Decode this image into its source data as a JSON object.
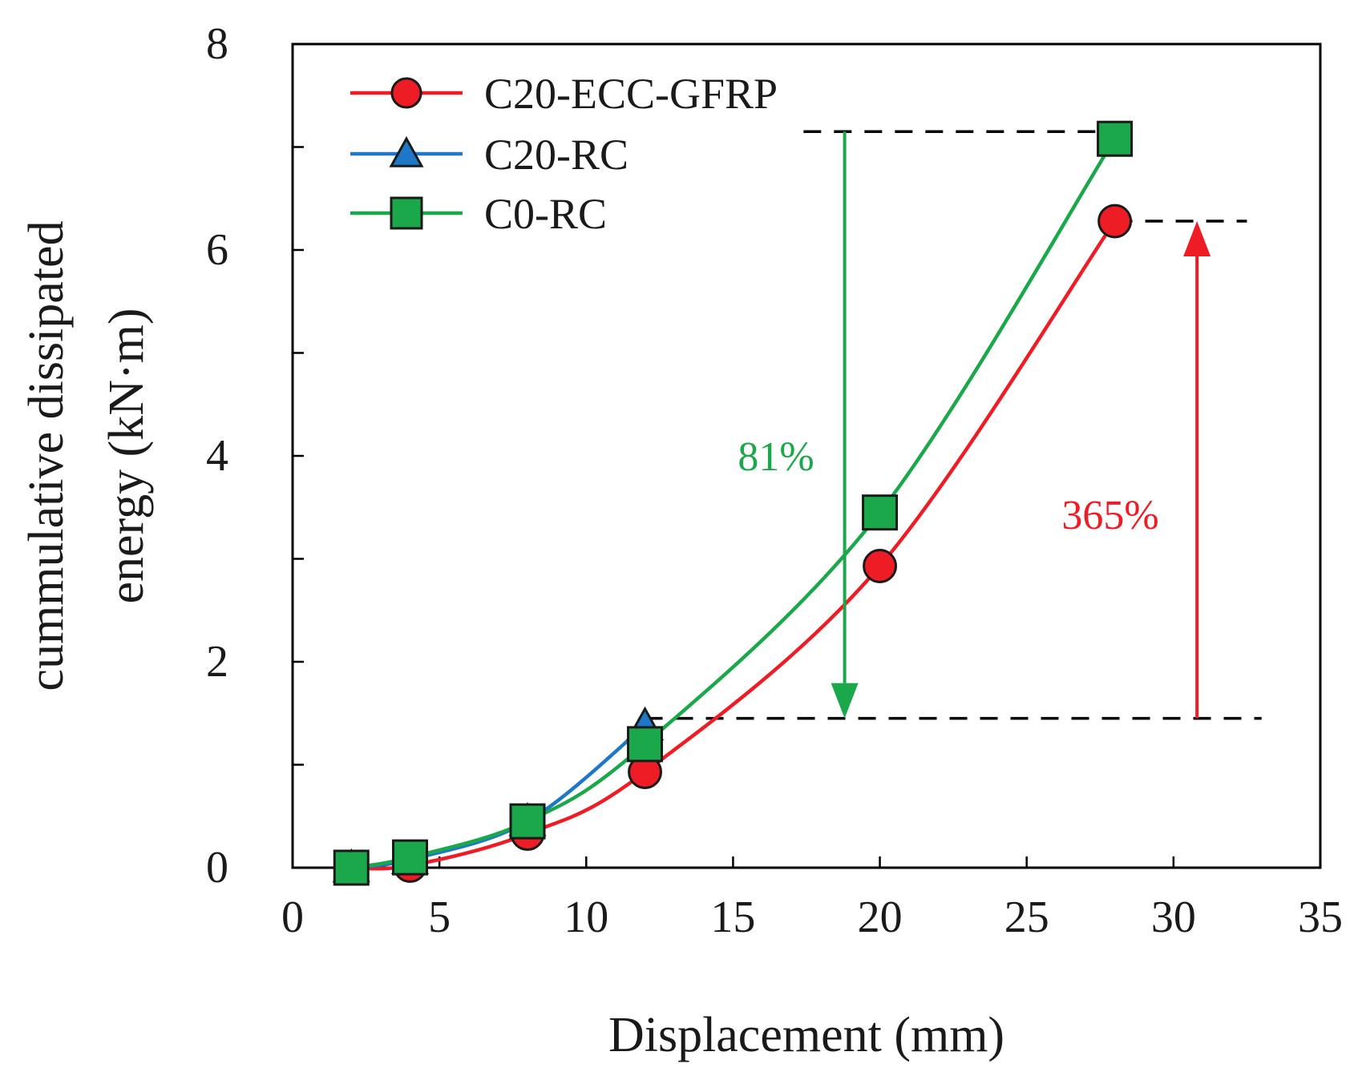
{
  "chart_data": {
    "type": "line",
    "xlabel": "Displacement (mm)",
    "ylabel_line1": "cummulative dissipated",
    "ylabel_line2": "energy (kN·m)",
    "xlim": [
      0,
      35
    ],
    "ylim": [
      0,
      8
    ],
    "xticks": [
      0,
      5,
      10,
      15,
      20,
      25,
      30,
      35
    ],
    "yticks_labeled": [
      0,
      2,
      4,
      6,
      8
    ],
    "yticks_minor": [
      1,
      3,
      5,
      7
    ],
    "grid": false,
    "legend_position": "top-left",
    "series": [
      {
        "name": "C20-ECC-GFRP",
        "color": "#ee1c25",
        "marker": "circle",
        "x": [
          2,
          4,
          8,
          12,
          20,
          28
        ],
        "y": [
          0.0,
          0.02,
          0.33,
          0.93,
          2.93,
          6.28
        ]
      },
      {
        "name": "C20-RC",
        "color": "#1f77c8",
        "marker": "triangle",
        "x": [
          2,
          4,
          8,
          12
        ],
        "y": [
          0.0,
          0.08,
          0.45,
          1.38
        ]
      },
      {
        "name": "C0-RC",
        "color": "#1aa84a",
        "marker": "square",
        "x": [
          2,
          4,
          8,
          12,
          20,
          28
        ],
        "y": [
          0.0,
          0.1,
          0.45,
          1.2,
          3.45,
          7.08
        ]
      }
    ],
    "annotations": [
      {
        "id": "green-arrow",
        "text": "81%",
        "color": "#1aa84a",
        "arrow_x": 18.8,
        "from_y": 7.15,
        "to_y": 1.45,
        "ref_line": {
          "x_from": 17.4,
          "x_to": 28.0,
          "y": 7.15
        }
      },
      {
        "id": "red-arrow",
        "text": "365%",
        "color": "#ee1c25",
        "arrow_x": 30.8,
        "from_y": 1.45,
        "to_y": 6.28,
        "ref_line": {
          "x_from": 28.0,
          "x_to": 32.5,
          "y": 6.28
        }
      },
      {
        "id": "base-line",
        "ref_line": {
          "x_from": 12.0,
          "x_to": 33.0,
          "y": 1.45
        }
      }
    ]
  }
}
